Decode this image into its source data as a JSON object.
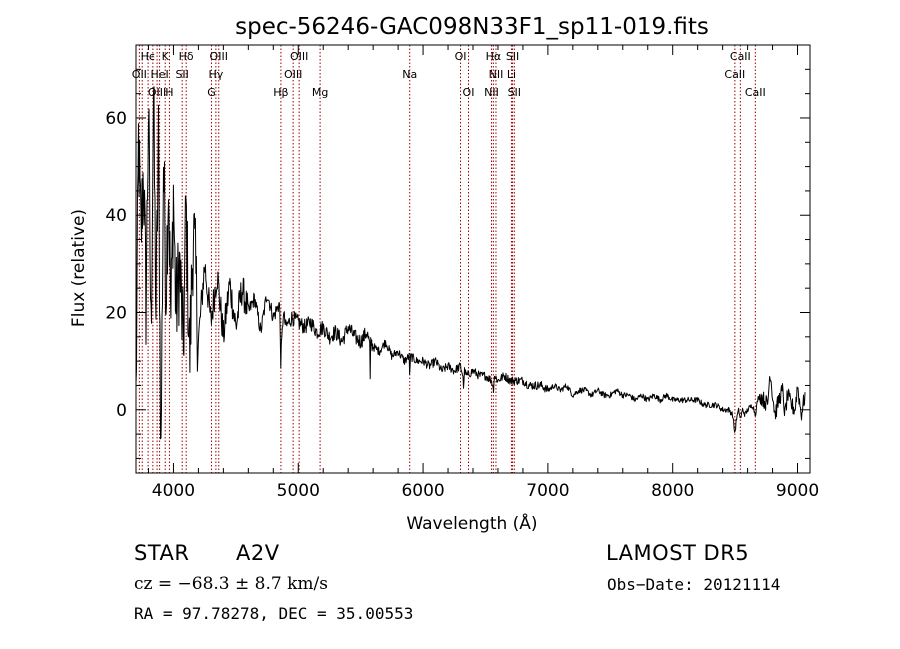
{
  "chart_data": {
    "type": "line",
    "title": "spec-56246-GAC098N33F1_sp11-019.fits",
    "xlabel": "Wavelength (Å)",
    "ylabel": "Flux (relative)",
    "xlim": [
      3700,
      9100
    ],
    "ylim": [
      -13,
      75
    ],
    "xticks": [
      4000,
      5000,
      6000,
      7000,
      8000,
      9000
    ],
    "xtick_labels": [
      "4000",
      "5000",
      "6000",
      "7000",
      "8000",
      "9000"
    ],
    "yticks": [
      0,
      20,
      40,
      60
    ],
    "ytick_labels": [
      "0",
      "20",
      "40",
      "60"
    ],
    "grid": false,
    "series_color": "#000000",
    "line_color": "#a00000",
    "spectrum": {
      "x": [
        3700,
        3720,
        3740,
        3760,
        3780,
        3800,
        3820,
        3840,
        3860,
        3880,
        3900,
        3920,
        3940,
        3960,
        3980,
        4000,
        4020,
        4050,
        4080,
        4100,
        4130,
        4160,
        4200,
        4250,
        4300,
        4350,
        4400,
        4450,
        4500,
        4550,
        4600,
        4650,
        4700,
        4750,
        4800,
        4850,
        4860,
        4880,
        4900,
        4950,
        5000,
        5050,
        5100,
        5150,
        5200,
        5250,
        5300,
        5350,
        5400,
        5450,
        5500,
        5550,
        5575,
        5577,
        5580,
        5600,
        5650,
        5700,
        5750,
        5800,
        5850,
        5890,
        5893,
        5900,
        5950,
        6000,
        6050,
        6100,
        6150,
        6200,
        6250,
        6300,
        6320,
        6320,
        6330,
        6350,
        6400,
        6450,
        6500,
        6550,
        6563,
        6570,
        6600,
        6650,
        6700,
        6750,
        6800,
        6850,
        6900,
        6950,
        7000,
        7050,
        7100,
        7150,
        7200,
        7250,
        7300,
        7350,
        7400,
        7450,
        7500,
        7550,
        7600,
        7650,
        7700,
        7750,
        7800,
        7850,
        7900,
        7950,
        8000,
        8050,
        8100,
        8150,
        8200,
        8250,
        8300,
        8350,
        8400,
        8450,
        8480,
        8498,
        8510,
        8530,
        8542,
        8560,
        8580,
        8600,
        8640,
        8662,
        8680,
        8700,
        8730,
        8760,
        8780,
        8800,
        8820,
        8850,
        8880,
        8900,
        8920,
        8950,
        8980,
        9000,
        9030,
        9060
      ],
      "y": [
        2,
        55,
        35,
        50,
        22,
        62,
        15,
        65,
        20,
        55,
        -10,
        52,
        25,
        48,
        18,
        45,
        20,
        30,
        12,
        42,
        10,
        38,
        14,
        30,
        18,
        28,
        15,
        26,
        17,
        25,
        20,
        23,
        16,
        24,
        19,
        22,
        10,
        20,
        17,
        19,
        18,
        17,
        18,
        16,
        17,
        15,
        16,
        14,
        17,
        15,
        14,
        16,
        13,
        -3,
        14,
        13,
        12,
        14,
        11,
        12,
        10,
        11,
        6,
        11,
        10,
        10,
        9,
        10,
        8,
        9,
        8,
        9,
        7,
        1,
        8,
        7,
        8,
        7,
        7,
        6,
        4,
        7,
        6,
        7,
        6,
        6,
        6,
        5,
        5,
        5,
        4,
        5,
        4,
        5,
        3,
        4,
        4,
        3,
        4,
        3,
        3,
        4,
        3,
        3,
        2,
        3,
        2,
        3,
        2,
        3,
        2,
        2,
        2,
        2,
        2,
        1,
        1,
        1,
        0,
        0,
        -1,
        -5,
        -2,
        0,
        -2,
        0,
        -1,
        0,
        1,
        -1,
        2,
        3,
        2,
        1,
        8,
        3,
        -1,
        2,
        4,
        -1,
        3,
        1,
        0,
        5,
        -1,
        3
      ]
    },
    "lines": [
      {
        "label": "Hϵ",
        "x": 3797,
        "row": 0
      },
      {
        "label": "K",
        "x": 3934,
        "row": 0
      },
      {
        "label": "Hδ",
        "x": 4102,
        "row": 0
      },
      {
        "label": "OIII",
        "x": 4363,
        "row": 0
      },
      {
        "label": "OIII",
        "x": 5007,
        "row": 0
      },
      {
        "label": "OI",
        "x": 6300,
        "row": 0
      },
      {
        "label": "Hα",
        "x": 6563,
        "row": 0
      },
      {
        "label": "SII",
        "x": 6717,
        "row": 0
      },
      {
        "label": "CaII",
        "x": 8542,
        "row": 0
      },
      {
        "label": "OII",
        "x": 3727,
        "row": 1
      },
      {
        "label": "HeI",
        "x": 3889,
        "row": 1
      },
      {
        "label": "SII",
        "x": 4070,
        "row": 1
      },
      {
        "label": "Hγ",
        "x": 4340,
        "row": 1
      },
      {
        "label": "OIII",
        "x": 4959,
        "row": 1
      },
      {
        "label": "Na",
        "x": 5893,
        "row": 1
      },
      {
        "label": "NII",
        "x": 6584,
        "row": 1
      },
      {
        "label": "Li",
        "x": 6708,
        "row": 1
      },
      {
        "label": "CaII",
        "x": 8498,
        "row": 1
      },
      {
        "label": "OIII",
        "x": 3869,
        "row": 2
      },
      {
        "label": "H",
        "x": 3968,
        "row": 2
      },
      {
        "label": "G",
        "x": 4305,
        "row": 2
      },
      {
        "label": "Hβ",
        "x": 4861,
        "row": 2
      },
      {
        "label": "Mg",
        "x": 5175,
        "row": 2
      },
      {
        "label": "OI",
        "x": 6364,
        "row": 2
      },
      {
        "label": "NII",
        "x": 6548,
        "row": 2
      },
      {
        "label": "SII",
        "x": 6731,
        "row": 2
      },
      {
        "label": "CaII",
        "x": 8662,
        "row": 2
      },
      {
        "label": "",
        "x": 3835,
        "row": 0
      },
      {
        "label": "",
        "x": 3750,
        "row": 1
      }
    ]
  },
  "info": {
    "object_class": "STAR",
    "subclass": "A2V",
    "survey": "LAMOST DR5",
    "cz": "cz = −68.3 ± 8.7 km/s",
    "obs_date": "Obs−Date: 20121114",
    "coords": "RA =  97.78278, DEC =  35.00553"
  }
}
